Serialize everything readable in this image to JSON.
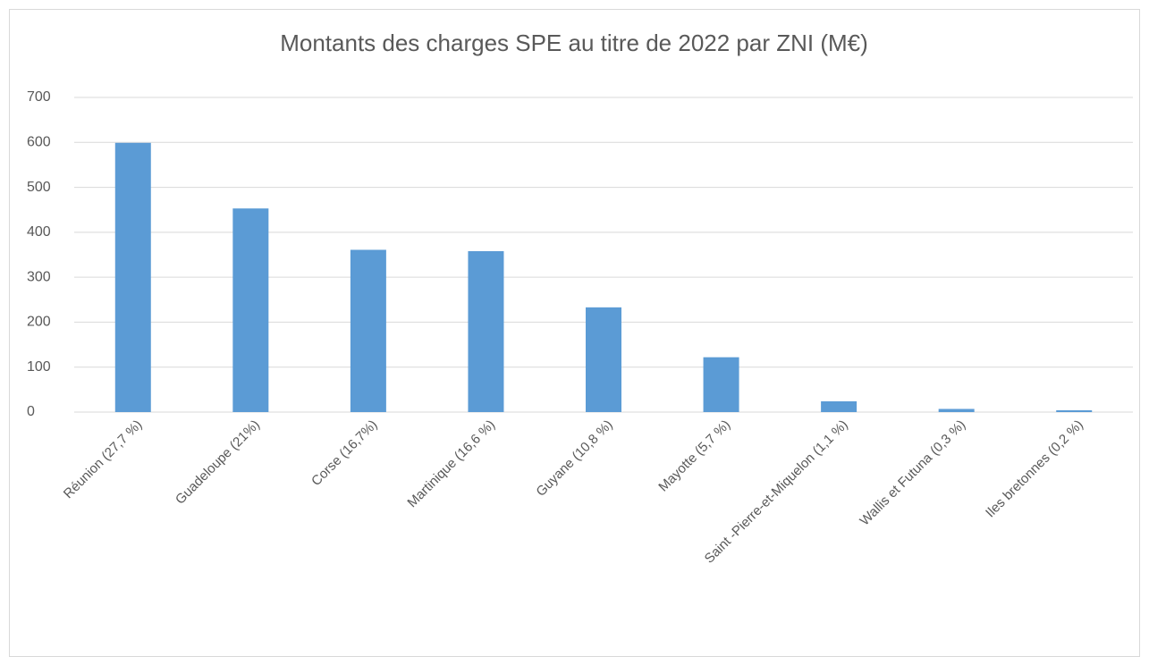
{
  "chart_data": {
    "type": "bar",
    "title": "Montants des charges SPE au titre de 2022 par ZNI (M€)",
    "categories": [
      "Réunion (27,7 %)",
      "Guadeloupe (21%)",
      "Corse (16,7%)",
      "Martinique (16,6 %)",
      "Guyane (10,8 %)",
      "Mayotte (5,7 %)",
      "Saint -Pierre-et-Miquelon (1,1 %)",
      "Wallis et Futuna (0,3 %)",
      "Iles bretonnes (0,2 %)"
    ],
    "values": [
      599,
      453,
      361,
      358,
      233,
      122,
      24,
      7,
      4
    ],
    "color": "#5b9bd5",
    "ylim": [
      0,
      700
    ],
    "yticks": [
      0,
      100,
      200,
      300,
      400,
      500,
      600,
      700
    ],
    "grid": true
  }
}
